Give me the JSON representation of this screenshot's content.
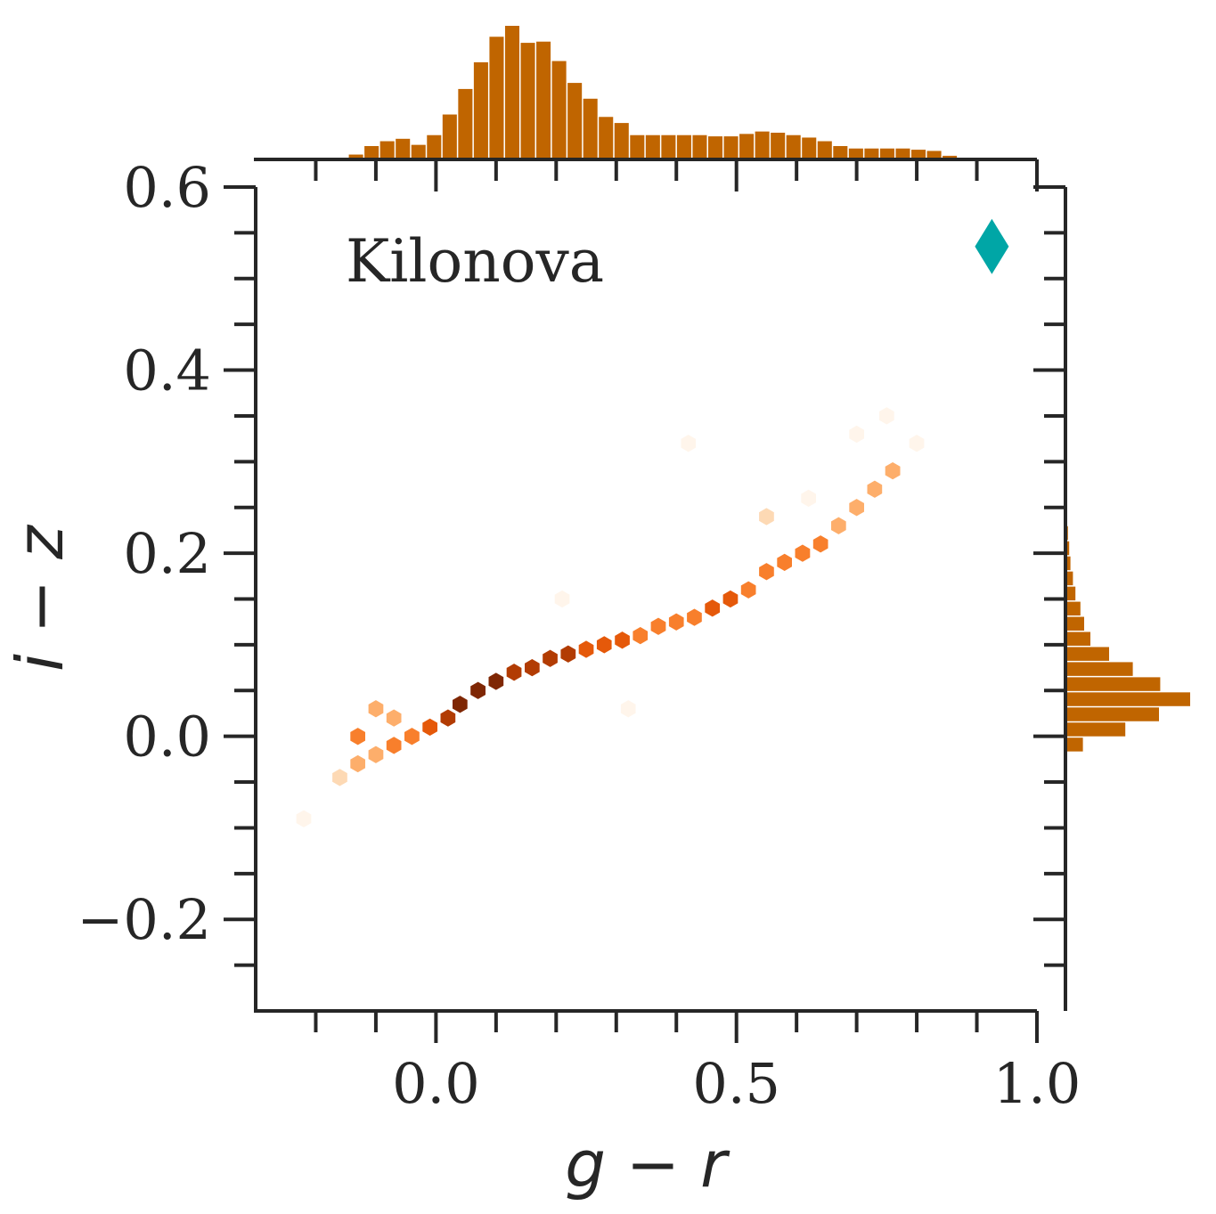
{
  "chart_data": {
    "type": "hexbin",
    "annotation": "Kilonova",
    "xlabel": "g − r",
    "ylabel": "i − z",
    "xlim": [
      -0.3,
      1.0
    ],
    "ylim": [
      -0.3,
      0.6
    ],
    "xticks": [
      0.0,
      0.5,
      1.0
    ],
    "xtick_labels": [
      "0.0",
      "0.5",
      "1.0"
    ],
    "yticks": [
      -0.2,
      0.0,
      0.2,
      0.4,
      0.6
    ],
    "ytick_labels": [
      "−0.2",
      "0.0",
      "0.2",
      "0.4",
      "0.6"
    ],
    "grid": false,
    "marker": {
      "shape": "diamond",
      "x": 0.925,
      "y": 0.535,
      "color": "#00a6a6"
    },
    "hist_color": "#c06500",
    "cmap": [
      "#fff5eb",
      "#fdd9b4",
      "#fdae6b",
      "#f87f2c",
      "#e5590a",
      "#b23c03",
      "#7f2704"
    ],
    "hex_centers": [
      {
        "x": -0.16,
        "y": -0.045,
        "d": 0.1
      },
      {
        "x": -0.13,
        "y": -0.03,
        "d": 0.3
      },
      {
        "x": -0.13,
        "y": 0.0,
        "d": 0.45
      },
      {
        "x": -0.1,
        "y": -0.02,
        "d": 0.35
      },
      {
        "x": -0.1,
        "y": 0.03,
        "d": 0.3
      },
      {
        "x": -0.07,
        "y": -0.01,
        "d": 0.45
      },
      {
        "x": -0.07,
        "y": 0.02,
        "d": 0.35
      },
      {
        "x": -0.04,
        "y": 0.0,
        "d": 0.55
      },
      {
        "x": -0.01,
        "y": 0.01,
        "d": 0.6
      },
      {
        "x": 0.02,
        "y": 0.02,
        "d": 0.8
      },
      {
        "x": 0.04,
        "y": 0.035,
        "d": 0.95
      },
      {
        "x": 0.07,
        "y": 0.05,
        "d": 1.0
      },
      {
        "x": 0.1,
        "y": 0.06,
        "d": 0.95
      },
      {
        "x": 0.13,
        "y": 0.07,
        "d": 0.9
      },
      {
        "x": 0.16,
        "y": 0.075,
        "d": 0.85
      },
      {
        "x": 0.19,
        "y": 0.085,
        "d": 0.8
      },
      {
        "x": 0.22,
        "y": 0.09,
        "d": 0.75
      },
      {
        "x": 0.25,
        "y": 0.095,
        "d": 0.7
      },
      {
        "x": 0.28,
        "y": 0.1,
        "d": 0.65
      },
      {
        "x": 0.31,
        "y": 0.105,
        "d": 0.6
      },
      {
        "x": 0.34,
        "y": 0.11,
        "d": 0.55
      },
      {
        "x": 0.37,
        "y": 0.12,
        "d": 0.55
      },
      {
        "x": 0.4,
        "y": 0.125,
        "d": 0.55
      },
      {
        "x": 0.43,
        "y": 0.13,
        "d": 0.55
      },
      {
        "x": 0.46,
        "y": 0.14,
        "d": 0.6
      },
      {
        "x": 0.49,
        "y": 0.15,
        "d": 0.6
      },
      {
        "x": 0.52,
        "y": 0.16,
        "d": 0.55
      },
      {
        "x": 0.55,
        "y": 0.18,
        "d": 0.5
      },
      {
        "x": 0.58,
        "y": 0.19,
        "d": 0.5
      },
      {
        "x": 0.61,
        "y": 0.2,
        "d": 0.45
      },
      {
        "x": 0.64,
        "y": 0.21,
        "d": 0.45
      },
      {
        "x": 0.67,
        "y": 0.23,
        "d": 0.4
      },
      {
        "x": 0.7,
        "y": 0.25,
        "d": 0.4
      },
      {
        "x": 0.73,
        "y": 0.27,
        "d": 0.35
      },
      {
        "x": 0.76,
        "y": 0.29,
        "d": 0.3
      },
      {
        "x": 0.55,
        "y": 0.24,
        "d": 0.1
      },
      {
        "x": 0.62,
        "y": 0.26,
        "d": 0.08
      },
      {
        "x": 0.7,
        "y": 0.33,
        "d": 0.06
      },
      {
        "x": 0.75,
        "y": 0.35,
        "d": 0.05
      },
      {
        "x": 0.8,
        "y": 0.32,
        "d": 0.05
      },
      {
        "x": 0.42,
        "y": 0.32,
        "d": 0.05
      },
      {
        "x": -0.22,
        "y": -0.09,
        "d": 0.08
      },
      {
        "x": 0.21,
        "y": 0.15,
        "d": 0.08
      },
      {
        "x": 0.32,
        "y": 0.03,
        "d": 0.08
      }
    ],
    "hist_x": {
      "bin_start": -0.145,
      "bin_width": 0.026,
      "counts": [
        0.04,
        0.11,
        0.15,
        0.17,
        0.12,
        0.2,
        0.37,
        0.58,
        0.8,
        1.01,
        1.1,
        0.96,
        0.97,
        0.81,
        0.63,
        0.5,
        0.35,
        0.3,
        0.2,
        0.2,
        0.2,
        0.2,
        0.2,
        0.19,
        0.19,
        0.21,
        0.23,
        0.22,
        0.2,
        0.18,
        0.15,
        0.11,
        0.09,
        0.09,
        0.09,
        0.09,
        0.08,
        0.07,
        0.03
      ]
    },
    "hist_y": {
      "bin_start": -0.018,
      "bin_width": 0.0165,
      "counts": [
        0.14,
        0.48,
        0.75,
        1.0,
        0.76,
        0.54,
        0.35,
        0.2,
        0.15,
        0.12,
        0.08,
        0.06,
        0.04,
        0.03,
        0.02
      ]
    }
  }
}
